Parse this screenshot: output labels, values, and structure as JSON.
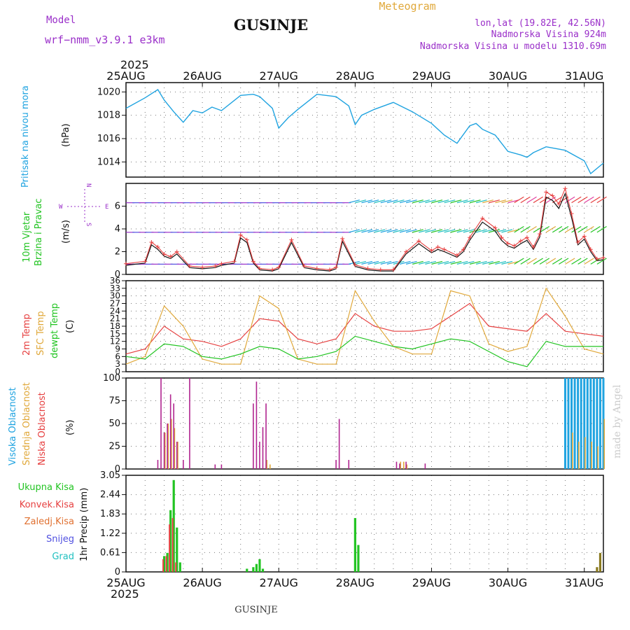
{
  "header": {
    "model_label": "Model",
    "model_name": "wrf−nmm_v3.9.1  e3km",
    "station": "GUSINJE",
    "product": "Meteogram",
    "lonlat": "lon,lat (19.82E, 42.56N)",
    "elev": "Nadmorska Visina 924m",
    "elev_model": "Nadmorska Visina u modelu 1310.69m"
  },
  "footer": {
    "station": "GUSINJE",
    "credit": "made by Angel"
  },
  "colors": {
    "pressure": "#1fa3e0",
    "wind_red": "#e64040",
    "temp": "#e64040",
    "sfc": "#e0a83a",
    "dew": "#22c422",
    "high_cloud": "#1fa3e0",
    "mid_cloud": "#e0a83a",
    "low_cloud": "#b0248f",
    "total_rain": "#22c422",
    "conv_rain": "#e64040",
    "freezing": "#e07030",
    "snow": "#5050e0",
    "hail": "#20c0c0",
    "purple": "#9a2fc9"
  },
  "time_axis": {
    "year": "2025",
    "ticks": [
      "25AUG",
      "26AUG",
      "27AUG",
      "28AUG",
      "29AUG",
      "30AUG",
      "31AUG"
    ]
  },
  "chart_data": [
    {
      "type": "line",
      "name": "pressure",
      "ylabel": [
        "Pritisak na nivou mora",
        "(hPa)"
      ],
      "yticks": [
        "1014",
        "1016",
        "1018",
        "1020"
      ],
      "ylim": [
        1012.7,
        1020.8
      ],
      "x_hours": [
        0,
        6,
        10,
        12,
        15,
        18,
        21,
        24,
        27,
        30,
        36,
        40,
        42,
        46,
        48,
        51,
        54,
        60,
        66,
        70,
        72,
        74,
        78,
        84,
        90,
        96,
        100,
        104,
        108,
        110,
        112,
        116,
        120,
        124,
        126,
        128,
        132,
        138,
        144,
        146,
        150
      ],
      "values": [
        1018.6,
        1019.5,
        1020.2,
        1019.3,
        1018.3,
        1017.4,
        1018.4,
        1018.2,
        1018.7,
        1018.4,
        1019.7,
        1019.8,
        1019.6,
        1018.6,
        1016.9,
        1017.8,
        1018.5,
        1019.8,
        1019.6,
        1018.8,
        1017.2,
        1018.0,
        1018.5,
        1019.1,
        1018.3,
        1017.3,
        1016.3,
        1015.6,
        1017.1,
        1017.3,
        1016.8,
        1016.3,
        1014.9,
        1014.6,
        1014.4,
        1014.8,
        1015.3,
        1015.0,
        1014.1,
        1013.0,
        1013.9
      ]
    },
    {
      "type": "line",
      "name": "wind",
      "ylabel": [
        "10m Vjetar",
        "Brzina i Pravac",
        "(m/s)"
      ],
      "direction_legend": [
        "N",
        "W",
        "E",
        "S"
      ],
      "yticks": [
        "0",
        "2",
        "4",
        "6"
      ],
      "ylim": [
        0,
        8
      ],
      "x_hours": [
        0,
        6,
        8,
        10,
        12,
        14,
        16,
        20,
        24,
        28,
        30,
        34,
        36,
        38,
        40,
        42,
        46,
        48,
        52,
        56,
        60,
        64,
        66,
        68,
        72,
        76,
        80,
        84,
        88,
        92,
        96,
        98,
        100,
        104,
        106,
        108,
        112,
        116,
        118,
        120,
        122,
        124,
        126,
        128,
        130,
        132,
        134,
        136,
        138,
        140,
        142,
        144,
        146,
        148,
        150
      ],
      "values": [
        0.8,
        1.0,
        2.6,
        2.2,
        1.6,
        1.4,
        1.8,
        0.6,
        0.5,
        0.6,
        0.8,
        1.0,
        3.2,
        2.8,
        1.0,
        0.4,
        0.3,
        0.5,
        2.8,
        0.6,
        0.4,
        0.3,
        0.5,
        2.9,
        0.7,
        0.4,
        0.3,
        0.3,
        1.8,
        2.7,
        1.9,
        2.2,
        2.0,
        1.5,
        2.0,
        3.0,
        4.6,
        3.8,
        3.0,
        2.5,
        2.3,
        2.7,
        3.0,
        2.2,
        3.3,
        6.8,
        6.5,
        5.8,
        7.1,
        5.0,
        2.6,
        3.1,
        2.0,
        1.2,
        1.3
      ]
    },
    {
      "type": "line",
      "name": "temperature",
      "ylabel": [
        "2m Temp",
        "SFC Temp",
        "dewpt Temp",
        "(C)"
      ],
      "yticks": [
        "0",
        "3",
        "6",
        "9",
        "12",
        "15",
        "18",
        "21",
        "24",
        "27",
        "30",
        "33",
        "36"
      ],
      "ylim": [
        0,
        36
      ],
      "series": [
        {
          "name": "2m Temp",
          "x_hours": [
            0,
            6,
            12,
            18,
            24,
            30,
            36,
            42,
            48,
            54,
            60,
            66,
            72,
            78,
            84,
            90,
            96,
            102,
            108,
            114,
            120,
            126,
            132,
            138,
            144,
            150
          ],
          "values": [
            7,
            9,
            18,
            13,
            12,
            10,
            13,
            21,
            20,
            13,
            11,
            13,
            23,
            18,
            16,
            16,
            17,
            22,
            27,
            18,
            17,
            16,
            23,
            16,
            15,
            14
          ]
        },
        {
          "name": "SFC Temp",
          "x_hours": [
            0,
            6,
            12,
            18,
            24,
            30,
            36,
            42,
            48,
            54,
            60,
            66,
            72,
            78,
            84,
            90,
            96,
            102,
            108,
            114,
            120,
            126,
            132,
            138,
            144,
            150
          ],
          "values": [
            3,
            6,
            26,
            18,
            5,
            3,
            3,
            30,
            25,
            5,
            3,
            3,
            32,
            20,
            10,
            7,
            7,
            32,
            30,
            11,
            8,
            10,
            33,
            22,
            9,
            7
          ]
        },
        {
          "name": "dewpt Temp",
          "x_hours": [
            0,
            6,
            12,
            18,
            24,
            30,
            36,
            42,
            48,
            54,
            60,
            66,
            72,
            78,
            84,
            90,
            96,
            102,
            108,
            114,
            120,
            126,
            132,
            138,
            144,
            150
          ],
          "values": [
            6,
            5,
            11,
            10,
            6,
            5,
            7,
            10,
            9,
            5,
            6,
            8,
            14,
            12,
            10,
            9,
            11,
            13,
            12,
            8,
            4,
            2,
            12,
            10,
            10,
            10
          ]
        }
      ]
    },
    {
      "type": "bar",
      "name": "cloud",
      "ylabel": [
        "Visoka Oblacnost",
        "Srednja Oblacnost",
        "Niska Oblacnost",
        "(%)"
      ],
      "yticks": [
        "0",
        "25",
        "50",
        "75",
        "100"
      ],
      "ylim": [
        0,
        100
      ],
      "series": [
        {
          "name": "Niska Oblacnost",
          "x_hours": [
            10,
            11,
            12,
            13,
            14,
            15,
            16,
            18,
            20,
            28,
            30,
            40,
            41,
            42,
            43,
            44,
            66,
            67,
            70,
            85,
            86,
            88,
            94
          ],
          "values": [
            10,
            100,
            40,
            50,
            82,
            72,
            30,
            10,
            100,
            5,
            5,
            72,
            96,
            30,
            46,
            72,
            10,
            55,
            10,
            8,
            6,
            8,
            6
          ]
        },
        {
          "name": "Srednja Oblacnost",
          "x_hours": [
            12,
            13,
            14,
            15,
            16,
            44,
            45,
            86,
            87,
            88,
            140,
            142,
            144,
            146,
            148,
            150
          ],
          "values": [
            40,
            50,
            55,
            45,
            30,
            10,
            5,
            8,
            8,
            5,
            40,
            30,
            35,
            30,
            25,
            55
          ]
        },
        {
          "name": "Visoka Oblacnost",
          "x_hours": [
            138,
            139,
            140,
            141,
            142,
            143,
            144,
            145,
            146,
            147,
            148,
            149,
            150
          ],
          "values": [
            100,
            100,
            100,
            100,
            100,
            100,
            100,
            100,
            100,
            100,
            100,
            100,
            100
          ]
        }
      ]
    },
    {
      "type": "bar",
      "name": "precip",
      "ylabel": [
        "1hr Precip (mm)"
      ],
      "legend": [
        "Ukupna Kisa",
        "Konvek.Kisa",
        "Zaledj.Kisa",
        "Snijeg",
        "Grad"
      ],
      "yticks": [
        "0",
        "0.61",
        "1.22",
        "1.83",
        "2.44",
        "3.05"
      ],
      "ylim": [
        0,
        3.05
      ],
      "series": [
        {
          "name": "Ukupna Kisa",
          "x_hours": [
            12,
            13,
            14,
            15,
            16,
            17,
            38,
            40,
            41,
            42,
            43,
            72,
            73
          ],
          "values": [
            0.5,
            0.6,
            1.95,
            2.9,
            1.4,
            0.3,
            0.1,
            0.15,
            0.25,
            0.4,
            0.1,
            1.7,
            0.85
          ]
        },
        {
          "name": "Konvek.Kisa",
          "x_hours": [
            12,
            13,
            14,
            15,
            16
          ],
          "values": [
            0.4,
            0.5,
            1.5,
            1.7,
            0.3
          ]
        },
        {
          "name": "Zaledj.Kisa",
          "x_hours": [
            148,
            149
          ],
          "values": [
            0.15,
            0.6
          ]
        }
      ]
    }
  ]
}
